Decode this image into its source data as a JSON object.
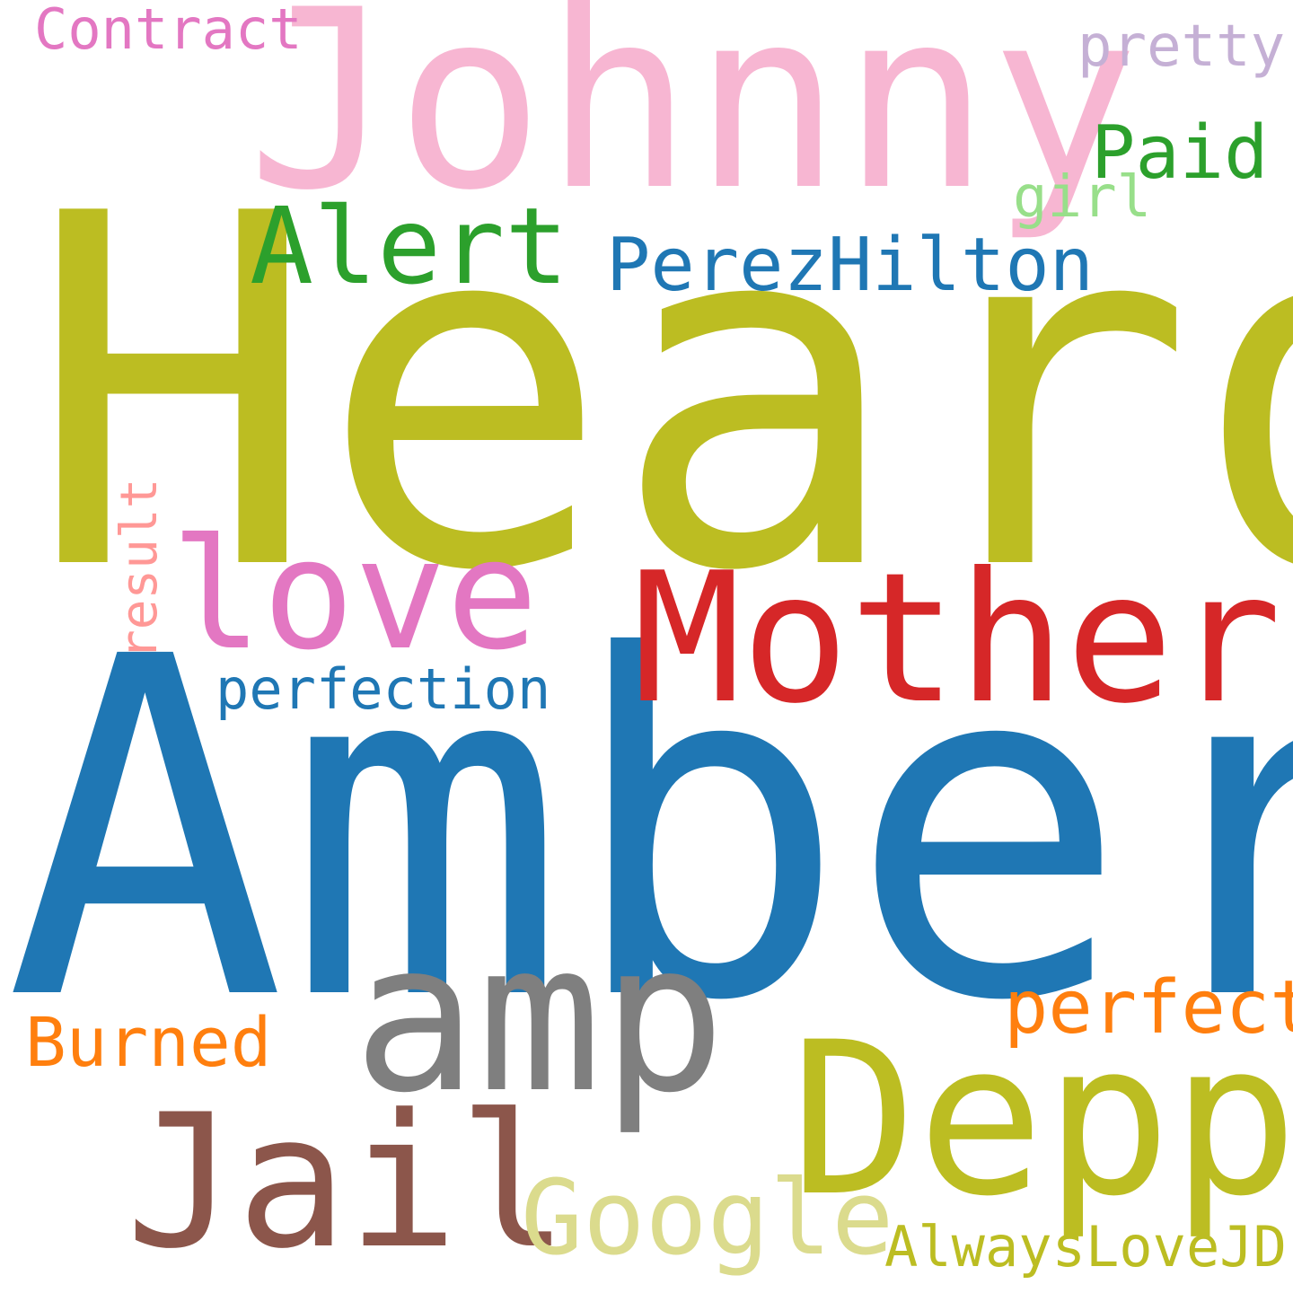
{
  "words": [
    {
      "id": "heard",
      "text": "Heard",
      "color": "#bcbd22"
    },
    {
      "id": "amber",
      "text": "Amber",
      "color": "#1f77b4"
    },
    {
      "id": "johnny",
      "text": "Johnny",
      "color": "#f7b6d2"
    },
    {
      "id": "mother",
      "text": "Mother",
      "color": "#d62728"
    },
    {
      "id": "amp",
      "text": "amp",
      "color": "#7f7f7f"
    },
    {
      "id": "depp",
      "text": "Depp",
      "color": "#bcbd22"
    },
    {
      "id": "jail",
      "text": "Jail",
      "color": "#8c564b"
    },
    {
      "id": "love",
      "text": "love",
      "color": "#e377c2"
    },
    {
      "id": "google",
      "text": "Google",
      "color": "#dbdb8d"
    },
    {
      "id": "alert",
      "text": "Alert",
      "color": "#2ca02c"
    },
    {
      "id": "perezhilton",
      "text": "PerezHilton",
      "color": "#1f77b4"
    },
    {
      "id": "paid",
      "text": "Paid",
      "color": "#2ca02c"
    },
    {
      "id": "perfect",
      "text": "perfect",
      "color": "#ff7f0e"
    },
    {
      "id": "burned",
      "text": "Burned",
      "color": "#ff7f0e"
    },
    {
      "id": "perfection",
      "text": "perfection",
      "color": "#1f77b4"
    },
    {
      "id": "contract",
      "text": "Contract",
      "color": "#e377c2"
    },
    {
      "id": "pretty",
      "text": "pretty",
      "color": "#c5b0d5"
    },
    {
      "id": "girl",
      "text": "girl",
      "color": "#98df8a"
    },
    {
      "id": "alwayslovejd",
      "text": "AlwaysLoveJD",
      "color": "#bcbd22"
    },
    {
      "id": "result",
      "text": "result",
      "color": "#ff9896"
    }
  ]
}
